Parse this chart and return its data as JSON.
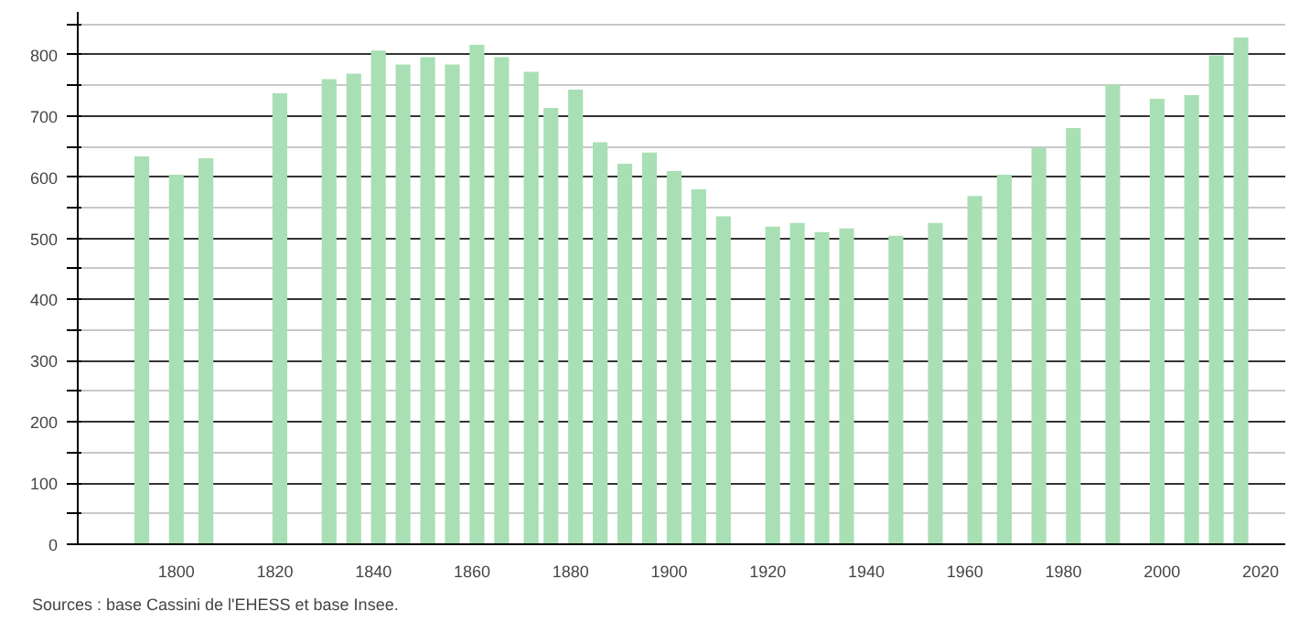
{
  "chart_data": {
    "type": "bar",
    "x": [
      1793,
      1800,
      1806,
      1821,
      1831,
      1836,
      1841,
      1846,
      1851,
      1856,
      1861,
      1866,
      1872,
      1876,
      1881,
      1886,
      1891,
      1896,
      1901,
      1906,
      1911,
      1921,
      1926,
      1931,
      1936,
      1946,
      1954,
      1962,
      1968,
      1975,
      1982,
      1990,
      1999,
      2006,
      2011,
      2016
    ],
    "values": [
      634,
      604,
      631,
      737,
      760,
      769,
      807,
      784,
      796,
      784,
      816,
      796,
      772,
      713,
      743,
      657,
      622,
      640,
      610,
      580,
      536,
      519,
      525,
      510,
      516,
      504,
      525,
      569,
      604,
      648,
      680,
      751,
      728,
      734,
      799,
      828
    ],
    "color": "#a9dfb4",
    "xlim": [
      1780,
      2025
    ],
    "xticks": [
      1800,
      1820,
      1840,
      1860,
      1880,
      1900,
      1920,
      1940,
      1960,
      1980,
      2000,
      2020
    ],
    "ylim": [
      0,
      870
    ],
    "yticks": [
      0,
      {
        "value": 50,
        "label": null
      },
      100,
      {
        "value": 150,
        "label": null
      },
      200,
      {
        "value": 250,
        "label": null
      },
      300,
      {
        "value": 350,
        "label": null
      },
      400,
      {
        "value": 450,
        "label": null
      },
      500,
      {
        "value": 550,
        "label": null
      },
      600,
      {
        "value": 650,
        "label": null
      },
      700,
      {
        "value": 750,
        "label": null
      },
      800,
      {
        "value": 850,
        "label": null
      }
    ],
    "grid": "y",
    "annotations": [
      "Sources : base Cassini de l'EHESS et base Insee."
    ]
  }
}
